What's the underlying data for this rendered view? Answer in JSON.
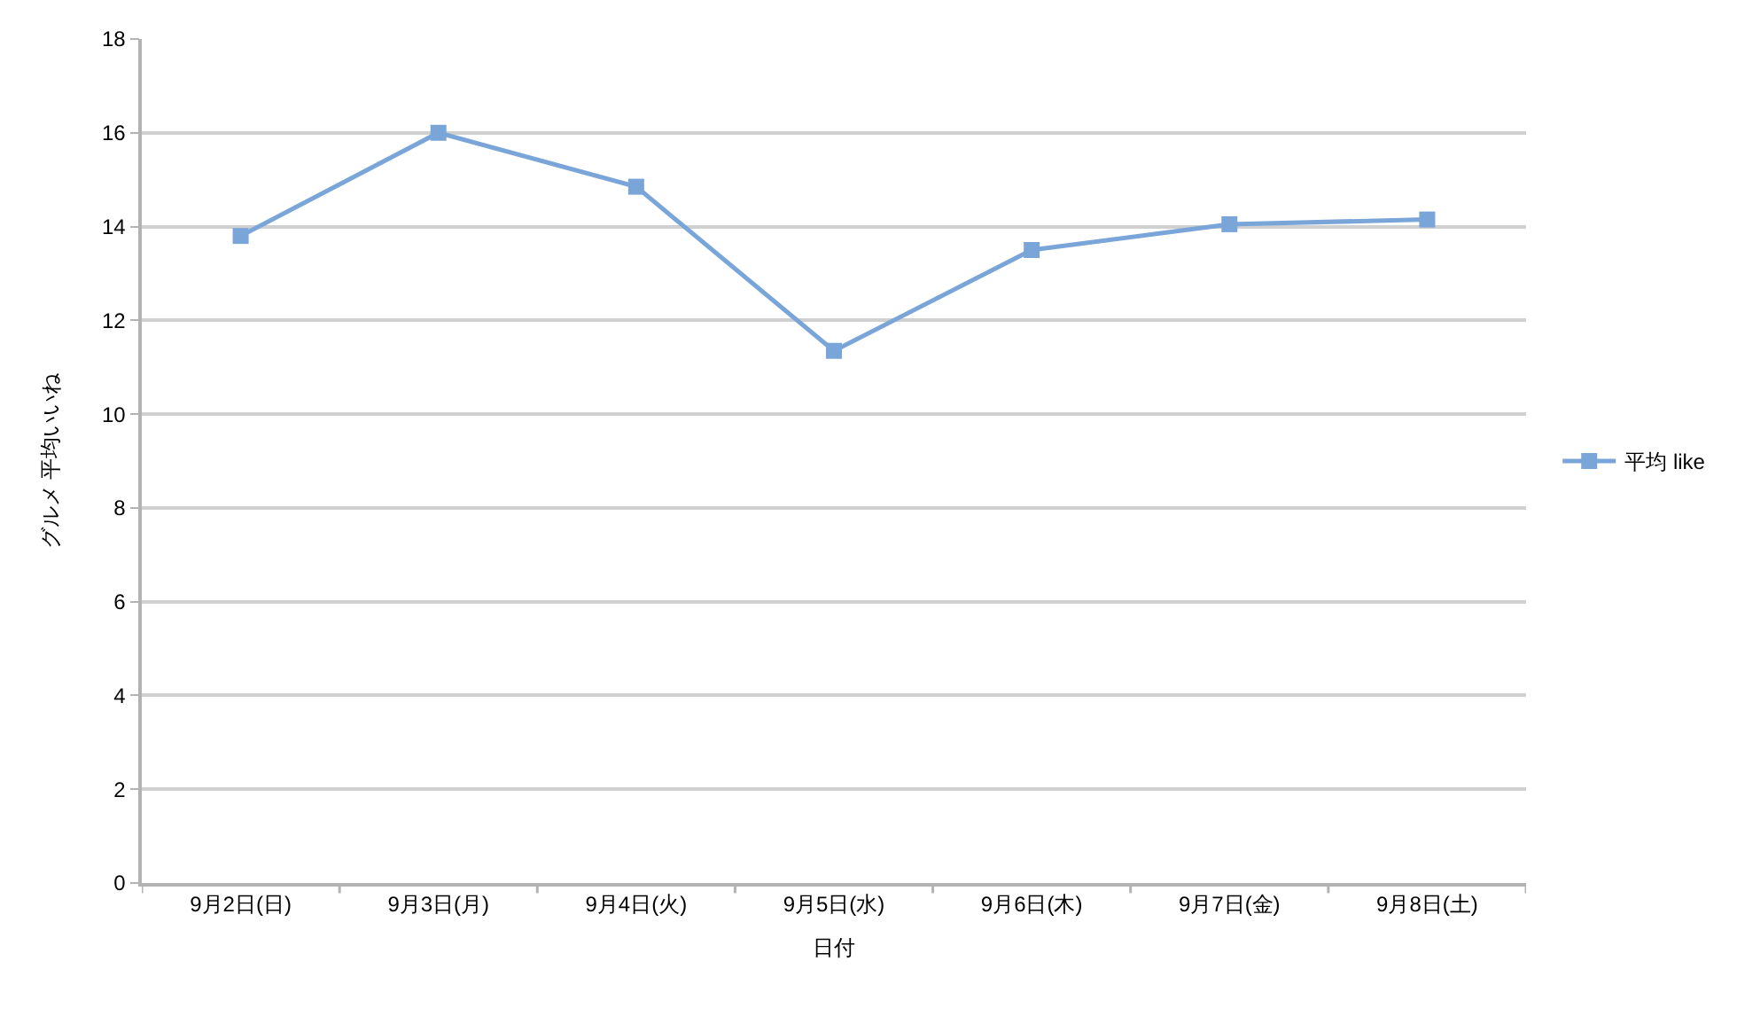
{
  "chart_data": {
    "type": "line",
    "xlabel": "日付",
    "ylabel": "グルメ 平均いいね",
    "categories": [
      "9月2日(日)",
      "9月3日(月)",
      "9月4日(火)",
      "9月5日(水)",
      "9月6日(木)",
      "9月7日(金)",
      "9月8日(土)"
    ],
    "series": [
      {
        "name": "平均 like",
        "color": "#7aa5d8",
        "values": [
          13.8,
          16.0,
          14.85,
          11.35,
          13.5,
          14.05,
          14.15
        ]
      }
    ],
    "ylim": [
      0,
      18
    ],
    "yticks": [
      0,
      2,
      4,
      6,
      8,
      10,
      12,
      14,
      16,
      18
    ],
    "grid": "y",
    "legend": "right",
    "marker": "square",
    "line_style": "solid"
  }
}
